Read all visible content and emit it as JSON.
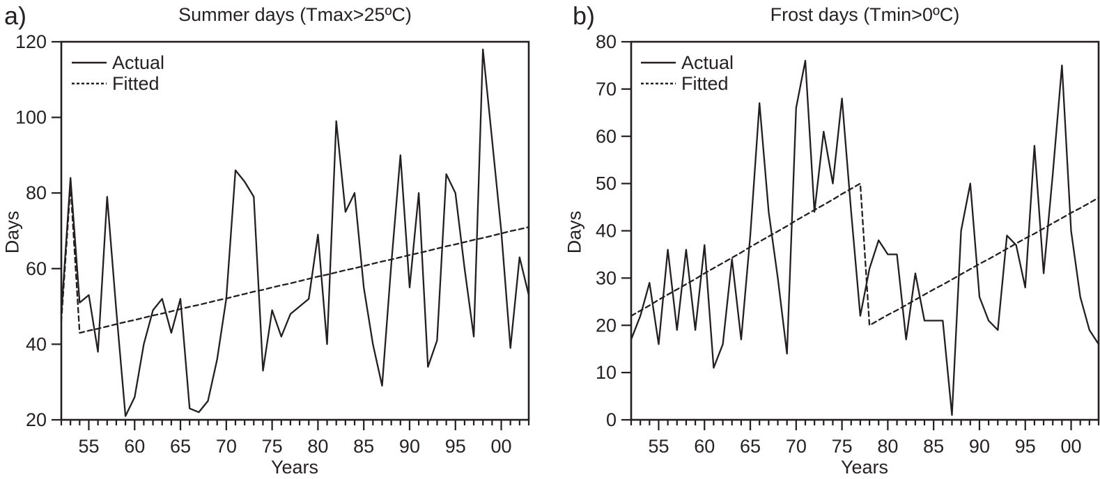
{
  "figure": {
    "background": "#ffffff",
    "line_color": "#231f20",
    "text_color": "#262223"
  },
  "panel_a": {
    "panel_label": "a)",
    "title": "Summer days (Tmax>25ºC)",
    "y_axis_label": "Days",
    "x_axis_label": "Years",
    "legend_actual": "Actual",
    "legend_fitted": "Fitted"
  },
  "panel_b": {
    "panel_label": "b)",
    "title": "Frost days (Tmin>0ºC)",
    "y_axis_label": "Days",
    "x_axis_label": "Years",
    "legend_actual": "Actual",
    "legend_fitted": "Fitted"
  },
  "chart_data": [
    {
      "panel": "a",
      "type": "line",
      "title": "Summer days (Tmax>25ºC)",
      "xlabel": "Years",
      "ylabel": "Days",
      "grid": false,
      "legend_position": "top-left",
      "line_color": "#231f20",
      "ylim": [
        20,
        120
      ],
      "ytick_step": 20,
      "ytick_labels": [
        "20",
        "40",
        "60",
        "80",
        "100",
        "120"
      ],
      "xlim": [
        1952,
        2003
      ],
      "xticks_major": [
        1955,
        1960,
        1965,
        1970,
        1975,
        1980,
        1985,
        1990,
        1995,
        2000
      ],
      "xtick_labels": [
        "55",
        "60",
        "65",
        "70",
        "75",
        "80",
        "85",
        "90",
        "95",
        "00"
      ],
      "x": [
        1952,
        1953,
        1954,
        1955,
        1956,
        1957,
        1958,
        1959,
        1960,
        1961,
        1962,
        1963,
        1964,
        1965,
        1966,
        1967,
        1968,
        1969,
        1970,
        1971,
        1972,
        1973,
        1974,
        1975,
        1976,
        1977,
        1978,
        1979,
        1980,
        1981,
        1982,
        1983,
        1984,
        1985,
        1986,
        1987,
        1988,
        1989,
        1990,
        1991,
        1992,
        1993,
        1994,
        1995,
        1996,
        1997,
        1998,
        1999,
        2000,
        2001,
        2002,
        2003
      ],
      "series": [
        {
          "name": "Actual",
          "line_style": "solid",
          "values": [
            48,
            84,
            51,
            53,
            38,
            79,
            49,
            21,
            26,
            40,
            49,
            52,
            43,
            52,
            23,
            22,
            25,
            36,
            52,
            86,
            83,
            79,
            33,
            49,
            42,
            48,
            50,
            52,
            69,
            40,
            99,
            75,
            80,
            55,
            40,
            29,
            61,
            90,
            55,
            80,
            34,
            41,
            85,
            80,
            60,
            42,
            118,
            94,
            70,
            39,
            63,
            53
          ]
        },
        {
          "name": "Fitted",
          "line_style": "dashed",
          "values": [
            46,
            82,
            43,
            43.6,
            44.1,
            44.7,
            45.3,
            45.9,
            46.4,
            47,
            47.6,
            48.1,
            48.7,
            49.3,
            49.9,
            50.4,
            51,
            51.6,
            52.1,
            52.7,
            53.3,
            53.9,
            54.4,
            55,
            55.6,
            56.1,
            56.7,
            57.3,
            57.9,
            58.4,
            59,
            59.6,
            60.1,
            60.7,
            61.3,
            61.9,
            62.4,
            63,
            63.6,
            64.1,
            64.7,
            65.3,
            65.9,
            66.4,
            67,
            67.6,
            68.1,
            68.7,
            69.3,
            69.9,
            70.4,
            71
          ]
        }
      ]
    },
    {
      "panel": "b",
      "type": "line",
      "title": "Frost days (Tmin>0ºC)",
      "xlabel": "Years",
      "ylabel": "Days",
      "grid": false,
      "legend_position": "top-left",
      "line_color": "#231f20",
      "ylim": [
        0,
        80
      ],
      "ytick_step": 10,
      "ytick_labels": [
        "0",
        "10",
        "20",
        "30",
        "40",
        "50",
        "60",
        "70",
        "80"
      ],
      "xlim": [
        1952,
        2003
      ],
      "xticks_major": [
        1955,
        1960,
        1965,
        1970,
        1975,
        1980,
        1985,
        1990,
        1995,
        2000
      ],
      "xtick_labels": [
        "55",
        "60",
        "65",
        "70",
        "75",
        "80",
        "85",
        "90",
        "95",
        "00"
      ],
      "x": [
        1952,
        1953,
        1954,
        1955,
        1956,
        1957,
        1958,
        1959,
        1960,
        1961,
        1962,
        1963,
        1964,
        1965,
        1966,
        1967,
        1968,
        1969,
        1970,
        1971,
        1972,
        1973,
        1974,
        1975,
        1976,
        1977,
        1978,
        1979,
        1980,
        1981,
        1982,
        1983,
        1984,
        1985,
        1986,
        1987,
        1988,
        1989,
        1990,
        1991,
        1992,
        1993,
        1994,
        1995,
        1996,
        1997,
        1998,
        1999,
        2000,
        2001,
        2002,
        2003
      ],
      "series": [
        {
          "name": "Actual",
          "line_style": "solid",
          "values": [
            17,
            22,
            29,
            16,
            36,
            19,
            36,
            19,
            37,
            11,
            16,
            34,
            17,
            39,
            67,
            44,
            30,
            14,
            66,
            76,
            44,
            61,
            50,
            68,
            44,
            22,
            32,
            38,
            35,
            35,
            17,
            31,
            21,
            21,
            21,
            1,
            40,
            50,
            26,
            21,
            19,
            39,
            37,
            28,
            58,
            31,
            52,
            75,
            40,
            26,
            19,
            16
          ]
        },
        {
          "name": "Fitted",
          "line_style": "dashed",
          "values": [
            22,
            23.1,
            24.2,
            25.4,
            26.5,
            27.6,
            28.7,
            29.8,
            31,
            32.1,
            33.2,
            34.3,
            35.4,
            36.6,
            37.7,
            38.8,
            39.9,
            41,
            42.2,
            43.3,
            44.4,
            45.5,
            46.6,
            47.8,
            48.9,
            50,
            20,
            21.1,
            22.2,
            23.2,
            24.3,
            25.4,
            26.5,
            27.6,
            28.6,
            29.7,
            30.8,
            31.9,
            33,
            34,
            35.1,
            36.2,
            37.3,
            38.4,
            39.4,
            40.5,
            41.6,
            42.7,
            43.8,
            44.8,
            45.9,
            47
          ]
        }
      ]
    }
  ]
}
